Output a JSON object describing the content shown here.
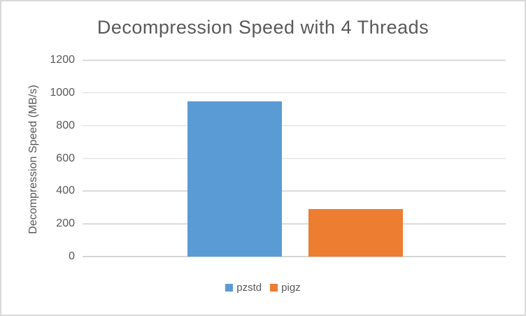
{
  "chart_data": {
    "type": "bar",
    "title": "Decompression Speed with 4 Threads",
    "xlabel": "",
    "ylabel": "Decompression Speed (MB/s)",
    "categories": [
      "pzstd",
      "pigz"
    ],
    "values": [
      950,
      290
    ],
    "colors": [
      "#5B9BD5",
      "#ED7D31"
    ],
    "ylim": [
      0,
      1200
    ],
    "yticks": [
      1200,
      1000,
      800,
      600,
      400,
      200,
      0
    ],
    "grid": true,
    "legend": {
      "position": "bottom",
      "entries": [
        "pzstd",
        "pigz"
      ]
    }
  },
  "styles": {
    "text_color": "#595959",
    "gridline_color": "#D9D9D9",
    "border_color": "#D9D9D9",
    "background": "#FFFFFF"
  }
}
